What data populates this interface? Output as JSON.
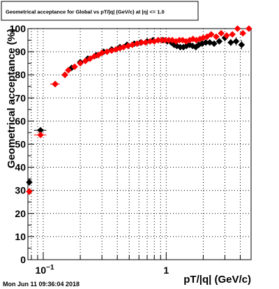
{
  "chart_data": {
    "type": "scatter",
    "title": "Geometrical acceptance for Global vs pT/|q| (GeV/c) at |η| <= 1.0",
    "xlabel": "pT/|q| (GeV/c)",
    "ylabel": "Geometrical acceptance (%)",
    "xscale": "log",
    "xlim": [
      0.075,
      4.9
    ],
    "ylim": [
      0,
      100
    ],
    "grid": true,
    "legend": "none",
    "x_tick_labels": [
      {
        "value": 0.1,
        "base": "10",
        "exp": "−1"
      },
      {
        "value": 1,
        "base": "1",
        "exp": ""
      }
    ],
    "y_ticks": [
      0,
      10,
      20,
      30,
      40,
      50,
      60,
      70,
      80,
      90,
      100
    ],
    "series": [
      {
        "color": "#000000",
        "marker": "diamond",
        "points": [
          {
            "x": 0.077,
            "y": 33.5,
            "xerr": 0.004,
            "yerr": 1.5
          },
          {
            "x": 0.095,
            "y": 56,
            "xerr": 0.011,
            "yerr": 1.0
          },
          {
            "x": 0.125,
            "y": 76,
            "xerr": 0.011,
            "yerr": 0.8
          },
          {
            "x": 0.15,
            "y": 80,
            "yerr": 0.6
          },
          {
            "x": 0.17,
            "y": 83
          },
          {
            "x": 0.2,
            "y": 85.5
          },
          {
            "x": 0.23,
            "y": 87
          },
          {
            "x": 0.27,
            "y": 88.5
          },
          {
            "x": 0.31,
            "y": 90
          },
          {
            "x": 0.36,
            "y": 91
          },
          {
            "x": 0.42,
            "y": 92
          },
          {
            "x": 0.48,
            "y": 93
          },
          {
            "x": 0.55,
            "y": 93.5
          },
          {
            "x": 0.62,
            "y": 94
          },
          {
            "x": 0.7,
            "y": 94.5
          },
          {
            "x": 0.78,
            "y": 95
          },
          {
            "x": 0.86,
            "y": 95
          },
          {
            "x": 0.94,
            "y": 95
          },
          {
            "x": 1.02,
            "y": 94.5
          },
          {
            "x": 1.1,
            "y": 94
          },
          {
            "x": 1.16,
            "y": 93,
            "yerr": 0.8
          },
          {
            "x": 1.22,
            "y": 92.5,
            "yerr": 0.8
          },
          {
            "x": 1.3,
            "y": 92,
            "yerr": 0.8
          },
          {
            "x": 1.38,
            "y": 92,
            "yerr": 0.8
          },
          {
            "x": 1.46,
            "y": 92.5,
            "yerr": 0.8
          },
          {
            "x": 1.55,
            "y": 93,
            "yerr": 0.8
          },
          {
            "x": 1.64,
            "y": 92.5,
            "yerr": 0.8
          },
          {
            "x": 1.74,
            "y": 92,
            "yerr": 0.8
          },
          {
            "x": 1.84,
            "y": 93,
            "yerr": 0.8
          },
          {
            "x": 1.96,
            "y": 93.5,
            "yerr": 0.8
          },
          {
            "x": 2.1,
            "y": 94,
            "yerr": 1.0
          },
          {
            "x": 2.26,
            "y": 94,
            "yerr": 1.0
          },
          {
            "x": 2.45,
            "y": 93.5,
            "yerr": 1.2
          },
          {
            "x": 2.7,
            "y": 94.5,
            "yerr": 1.2
          },
          {
            "x": 3.0,
            "y": 96,
            "yerr": 1.5
          },
          {
            "x": 3.35,
            "y": 94,
            "yerr": 1.5
          },
          {
            "x": 3.7,
            "y": 94.5,
            "yerr": 1.8
          },
          {
            "x": 4.1,
            "y": 93,
            "yerr": 2.0
          }
        ]
      },
      {
        "color": "#ff0000",
        "marker": "diamond",
        "points": [
          {
            "x": 0.077,
            "y": 29.5,
            "xerr": 0.004,
            "yerr": 1.5
          },
          {
            "x": 0.095,
            "y": 54,
            "xerr": 0.011,
            "yerr": 1.0
          },
          {
            "x": 0.125,
            "y": 76,
            "xerr": 0.011,
            "yerr": 0.8
          },
          {
            "x": 0.15,
            "y": 80
          },
          {
            "x": 0.16,
            "y": 82
          },
          {
            "x": 0.18,
            "y": 83.5
          },
          {
            "x": 0.2,
            "y": 85
          },
          {
            "x": 0.22,
            "y": 86
          },
          {
            "x": 0.24,
            "y": 87
          },
          {
            "x": 0.26,
            "y": 88
          },
          {
            "x": 0.28,
            "y": 88.5
          },
          {
            "x": 0.3,
            "y": 89.5
          },
          {
            "x": 0.33,
            "y": 90
          },
          {
            "x": 0.36,
            "y": 90.5
          },
          {
            "x": 0.39,
            "y": 91
          },
          {
            "x": 0.42,
            "y": 91.5
          },
          {
            "x": 0.45,
            "y": 92
          },
          {
            "x": 0.49,
            "y": 92.5
          },
          {
            "x": 0.53,
            "y": 93
          },
          {
            "x": 0.58,
            "y": 93.5
          },
          {
            "x": 0.63,
            "y": 94
          },
          {
            "x": 0.68,
            "y": 94
          },
          {
            "x": 0.74,
            "y": 94.5
          },
          {
            "x": 0.8,
            "y": 94.5
          },
          {
            "x": 0.86,
            "y": 95
          },
          {
            "x": 0.92,
            "y": 95
          },
          {
            "x": 0.98,
            "y": 95
          },
          {
            "x": 1.05,
            "y": 95
          },
          {
            "x": 1.12,
            "y": 95
          },
          {
            "x": 1.2,
            "y": 94.5
          },
          {
            "x": 1.28,
            "y": 95
          },
          {
            "x": 1.36,
            "y": 95
          },
          {
            "x": 1.45,
            "y": 94.5
          },
          {
            "x": 1.55,
            "y": 95
          },
          {
            "x": 1.65,
            "y": 95.5
          },
          {
            "x": 1.76,
            "y": 95
          },
          {
            "x": 1.88,
            "y": 95.5
          },
          {
            "x": 2.0,
            "y": 96
          },
          {
            "x": 2.15,
            "y": 96.5,
            "yerr": 0.8
          },
          {
            "x": 2.32,
            "y": 97.5,
            "yerr": 0.8
          },
          {
            "x": 2.55,
            "y": 96.5,
            "yerr": 0.8
          },
          {
            "x": 2.8,
            "y": 98,
            "yerr": 0.8
          },
          {
            "x": 3.1,
            "y": 97,
            "yerr": 1.0
          },
          {
            "x": 3.45,
            "y": 97.5,
            "yerr": 1.0
          },
          {
            "x": 3.8,
            "y": 100,
            "yerr": 1.0
          },
          {
            "x": 4.2,
            "y": 98,
            "yerr": 1.0
          },
          {
            "x": 4.7,
            "y": 100,
            "yerr": 1.0
          }
        ]
      }
    ]
  },
  "footer": {
    "timestamp": "Mon Jun 11 09:36:04 2018"
  }
}
